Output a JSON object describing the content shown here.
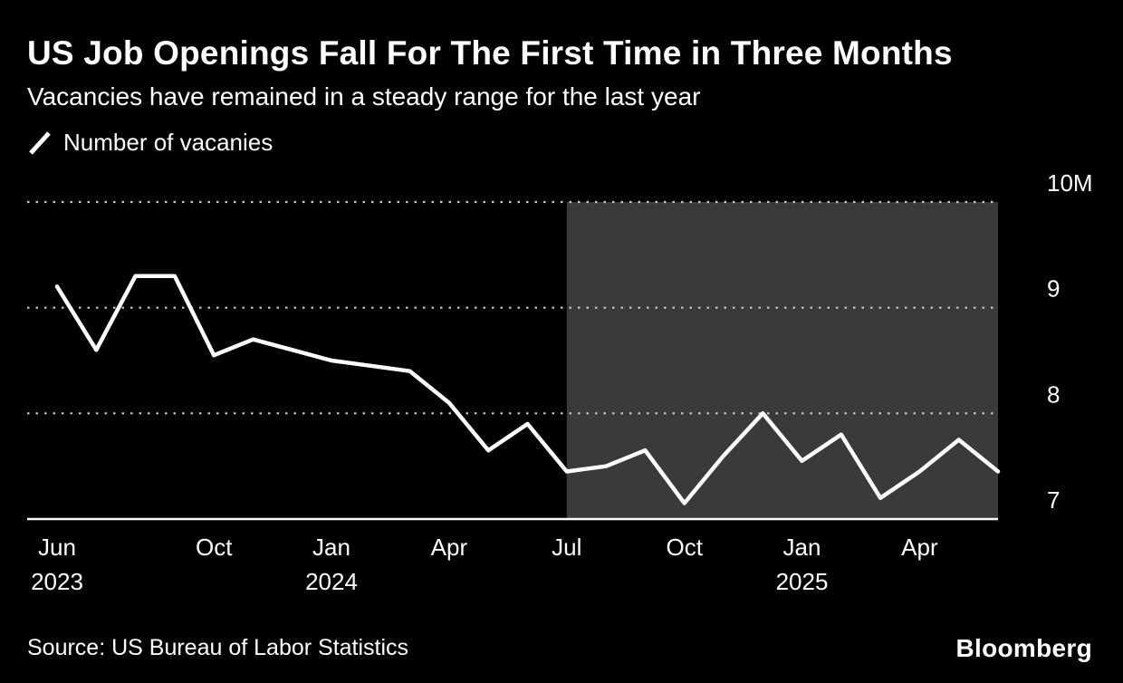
{
  "header": {
    "title": "US Job Openings Fall For The First Time in Three Months",
    "subtitle": "Vacancies have remained in a steady range for the last year"
  },
  "legend": {
    "label": "Number of vacanies",
    "icon": "line-series-icon",
    "icon_color": "#ffffff"
  },
  "chart_data": {
    "type": "line",
    "title": "US Job Openings Fall For The First Time in Three Months",
    "subtitle": "Vacancies have remained in a steady range for the last year",
    "series": [
      {
        "name": "Number of vacanies",
        "unit": "millions",
        "values": [
          9.2,
          8.6,
          9.3,
          9.3,
          8.55,
          8.7,
          8.6,
          8.5,
          8.45,
          8.4,
          8.1,
          7.65,
          7.9,
          7.45,
          7.5,
          7.65,
          7.15,
          7.6,
          8.0,
          7.55,
          7.8,
          7.2,
          7.45,
          7.75,
          7.45
        ]
      }
    ],
    "x": [
      "Jun 2023",
      "Jul 2023",
      "Aug 2023",
      "Sep 2023",
      "Oct 2023",
      "Nov 2023",
      "Dec 2023",
      "Jan 2024",
      "Feb 2024",
      "Mar 2024",
      "Apr 2024",
      "May 2024",
      "Jun 2024",
      "Jul 2024",
      "Aug 2024",
      "Sep 2024",
      "Oct 2024",
      "Nov 2024",
      "Dec 2024",
      "Jan 2025",
      "Feb 2025",
      "Mar 2025",
      "Apr 2025",
      "May 2025",
      "Jun 2025"
    ],
    "ylim": [
      7,
      10
    ],
    "yticks": [
      {
        "value": 10,
        "label": "10M"
      },
      {
        "value": 9,
        "label": "9"
      },
      {
        "value": 8,
        "label": "8"
      },
      {
        "value": 7,
        "label": "7"
      }
    ],
    "xticks": [
      {
        "index": 0,
        "line1": "Jun",
        "line2": "2023"
      },
      {
        "index": 4,
        "line1": "Oct"
      },
      {
        "index": 7,
        "line1": "Jan",
        "line2": "2024"
      },
      {
        "index": 10,
        "line1": "Apr"
      },
      {
        "index": 13,
        "line1": "Jul"
      },
      {
        "index": 16,
        "line1": "Oct"
      },
      {
        "index": 19,
        "line1": "Jan",
        "line2": "2025"
      },
      {
        "index": 22,
        "line1": "Apr"
      }
    ],
    "highlight_region": {
      "label": "last year",
      "start_index": 13,
      "end": "right-edge",
      "color": "#3a3a3a"
    },
    "grid": "dotted horizontal, legend top-left, y labels on right",
    "grid_color": "#c9c9c9",
    "axis_color": "#ffffff",
    "line_color": "#ffffff",
    "background": "#000000"
  },
  "footer": {
    "source": "Source: US Bureau of Labor Statistics",
    "brand": "Bloomberg"
  }
}
